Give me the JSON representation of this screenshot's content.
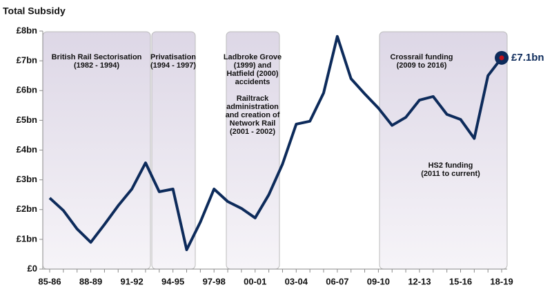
{
  "chart_data": {
    "type": "line",
    "title": "Total Subsidy",
    "categories": [
      "85-86",
      null,
      null,
      "88-89",
      null,
      null,
      "91-92",
      null,
      null,
      "94-95",
      null,
      null,
      "97-98",
      null,
      null,
      "00-01",
      null,
      null,
      "03-04",
      null,
      null,
      "06-07",
      null,
      null,
      "09-10",
      null,
      null,
      "12-13",
      null,
      null,
      "15-16",
      null,
      null,
      "18-19"
    ],
    "series": [
      {
        "name": "Total Subsidy",
        "color": "#0d2b5b",
        "values": [
          2.39,
          1.97,
          1.35,
          0.9,
          1.5,
          2.13,
          2.69,
          3.57,
          2.6,
          2.69,
          0.65,
          1.58,
          2.69,
          2.27,
          2.04,
          1.72,
          2.5,
          3.53,
          4.87,
          4.97,
          5.92,
          7.82,
          6.4,
          5.89,
          5.41,
          4.83,
          5.1,
          5.68,
          5.8,
          5.2,
          5.03,
          4.39,
          6.5,
          7.1
        ],
        "value_labels": [
          null,
          null,
          null,
          null,
          null,
          null,
          null,
          null,
          null,
          null,
          null,
          null,
          null,
          null,
          null,
          null,
          null,
          null,
          null,
          null,
          null,
          null,
          null,
          null,
          null,
          null,
          null,
          null,
          null,
          null,
          null,
          null,
          null,
          "£7.1bn"
        ]
      }
    ],
    "ylim": [
      0,
      8
    ],
    "yticks": [
      {
        "value": 0,
        "label": "£0"
      },
      {
        "value": 1,
        "label": "£1bn"
      },
      {
        "value": 2,
        "label": "£2bn"
      },
      {
        "value": 3,
        "label": "£3bn"
      },
      {
        "value": 4,
        "label": "£4bn"
      },
      {
        "value": 5,
        "label": "£5bn"
      },
      {
        "value": 6,
        "label": "£6bn"
      },
      {
        "value": 7,
        "label": "£7bn"
      },
      {
        "value": 8,
        "label": "£8bn"
      }
    ],
    "annotations": [
      {
        "lines": [
          "British Rail Sectorisation",
          "(1982 - 1994)"
        ]
      },
      {
        "lines": [
          "Privatisation",
          "(1994 - 1997)"
        ]
      },
      {
        "lines": [
          "Ladbroke Grove",
          "(1999) and",
          "Hatfield (2000)",
          "accidents"
        ]
      },
      {
        "lines": [
          "Railtrack",
          "administration",
          "and creation of",
          "Network Rail",
          "(2001 - 2002)"
        ]
      },
      {
        "lines": [
          "Crossrail funding",
          "(2009 to 2016)"
        ]
      },
      {
        "lines": [
          "HS2 funding",
          "(2011 to current)"
        ]
      }
    ]
  }
}
